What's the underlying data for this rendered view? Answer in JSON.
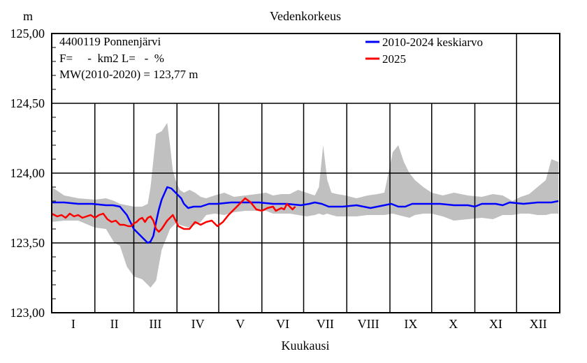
{
  "chart_data": {
    "type": "line",
    "title": "Vedenkorkeus",
    "ylabel": "m",
    "xlabel": "Kuukausi",
    "ylim": [
      123.0,
      125.0
    ],
    "yticks": [
      "123,00",
      "123,50",
      "124,00",
      "124,50",
      "125,00"
    ],
    "ytick_values": [
      123.0,
      123.5,
      124.0,
      124.5,
      125.0
    ],
    "months": [
      "I",
      "II",
      "III",
      "IV",
      "V",
      "VI",
      "VII",
      "VIII",
      "IX",
      "X",
      "XI",
      "XII"
    ],
    "info": [
      "4400119 Ponnenjärvi",
      "F=     -  km2 L=   -  %",
      "MW(2010-2020) = 123,77 m"
    ],
    "legend": [
      {
        "name": "2010-2024 keskiarvo",
        "color": "#0000ff"
      },
      {
        "name": "2025",
        "color": "#ff0000"
      }
    ],
    "band": {
      "name": "min-max range",
      "color": "#c0c0c0",
      "x": [
        1,
        10,
        20,
        32,
        40,
        46,
        50,
        55,
        60,
        66,
        70,
        72,
        76,
        80,
        84,
        86,
        88,
        90,
        93,
        96,
        100,
        104,
        108,
        112,
        118,
        125,
        132,
        140,
        148,
        155,
        160,
        166,
        172,
        178,
        184,
        190,
        193,
        196,
        199,
        202,
        206,
        212,
        220,
        228,
        235,
        240,
        246,
        250,
        254,
        258,
        262,
        268,
        274,
        282,
        290,
        300,
        310,
        318,
        325,
        332,
        338,
        344,
        350,
        356,
        360,
        365
      ],
      "upper": [
        123.9,
        123.84,
        123.82,
        123.81,
        123.82,
        123.8,
        123.78,
        123.77,
        123.76,
        123.76,
        123.78,
        123.9,
        124.28,
        124.3,
        124.36,
        124.2,
        124.02,
        123.95,
        123.88,
        123.86,
        123.88,
        123.86,
        123.83,
        123.82,
        123.84,
        123.86,
        123.83,
        123.84,
        123.85,
        123.86,
        123.84,
        123.85,
        123.85,
        123.88,
        123.86,
        123.84,
        123.9,
        124.2,
        123.95,
        123.86,
        123.85,
        123.84,
        123.82,
        123.84,
        123.85,
        123.86,
        124.15,
        124.2,
        124.08,
        124.0,
        123.95,
        123.9,
        123.86,
        123.84,
        123.86,
        123.84,
        123.83,
        123.85,
        123.84,
        123.8,
        123.83,
        123.85,
        123.9,
        123.95,
        124.1,
        124.08
      ],
      "lower": [
        123.65,
        123.66,
        123.66,
        123.61,
        123.6,
        123.5,
        123.48,
        123.33,
        123.26,
        123.24,
        123.2,
        123.18,
        123.23,
        123.45,
        123.55,
        123.6,
        123.62,
        123.64,
        123.63,
        123.62,
        123.61,
        123.63,
        123.65,
        123.7,
        123.71,
        123.7,
        123.72,
        123.73,
        123.73,
        123.73,
        123.71,
        123.71,
        123.71,
        123.7,
        123.69,
        123.7,
        123.71,
        123.7,
        123.71,
        123.7,
        123.69,
        123.69,
        123.69,
        123.7,
        123.7,
        123.7,
        123.71,
        123.7,
        123.69,
        123.68,
        123.7,
        123.71,
        123.71,
        123.69,
        123.66,
        123.67,
        123.68,
        123.67,
        123.7,
        123.7,
        123.71,
        123.71,
        123.7,
        123.7,
        123.71,
        123.71
      ]
    },
    "series": [
      {
        "name": "2010-2024 keskiarvo",
        "color": "#0000ff",
        "x": [
          1,
          10,
          20,
          30,
          40,
          45,
          50,
          55,
          60,
          65,
          68,
          70,
          72,
          74,
          76,
          78,
          80,
          84,
          87,
          90,
          94,
          96,
          99,
          103,
          108,
          114,
          120,
          130,
          140,
          150,
          160,
          170,
          180,
          186,
          190,
          195,
          200,
          210,
          220,
          230,
          235,
          240,
          245,
          250,
          255,
          260,
          270,
          280,
          290,
          300,
          305,
          310,
          320,
          325,
          330,
          340,
          350,
          360,
          365
        ],
        "values": [
          123.79,
          123.79,
          123.78,
          123.78,
          123.77,
          123.77,
          123.76,
          123.7,
          123.6,
          123.55,
          123.52,
          123.5,
          123.51,
          123.55,
          123.65,
          123.74,
          123.81,
          123.9,
          123.89,
          123.86,
          123.82,
          123.78,
          123.75,
          123.76,
          123.76,
          123.78,
          123.78,
          123.79,
          123.79,
          123.79,
          123.78,
          123.78,
          123.77,
          123.78,
          123.79,
          123.78,
          123.76,
          123.76,
          123.77,
          123.75,
          123.76,
          123.77,
          123.78,
          123.76,
          123.76,
          123.78,
          123.78,
          123.78,
          123.77,
          123.77,
          123.76,
          123.78,
          123.78,
          123.77,
          123.79,
          123.78,
          123.79,
          123.79,
          123.8
        ]
      },
      {
        "name": "2025",
        "color": "#ff0000",
        "x": [
          1,
          5,
          8,
          11,
          14,
          17,
          20,
          23,
          26,
          29,
          32,
          35,
          38,
          41,
          44,
          47,
          50,
          53,
          56,
          58,
          60,
          62,
          64,
          66,
          68,
          70,
          72,
          74,
          76,
          78,
          80,
          84,
          88,
          92,
          96,
          100,
          104,
          108,
          112,
          116,
          120,
          124,
          128,
          132,
          136,
          140,
          144,
          148,
          152,
          156,
          160,
          162,
          164,
          166,
          168,
          170,
          172,
          174,
          176
        ],
        "values": [
          123.71,
          123.69,
          123.7,
          123.68,
          123.71,
          123.69,
          123.7,
          123.68,
          123.69,
          123.7,
          123.68,
          123.7,
          123.71,
          123.67,
          123.65,
          123.66,
          123.63,
          123.63,
          123.62,
          123.62,
          123.64,
          123.65,
          123.67,
          123.68,
          123.65,
          123.68,
          123.69,
          123.66,
          123.6,
          123.58,
          123.6,
          123.66,
          123.7,
          123.62,
          123.6,
          123.6,
          123.65,
          123.63,
          123.65,
          123.66,
          123.62,
          123.65,
          123.7,
          123.74,
          123.78,
          123.82,
          123.79,
          123.74,
          123.73,
          123.75,
          123.76,
          123.73,
          123.74,
          123.75,
          123.74,
          123.78,
          123.76,
          123.74,
          123.76
        ]
      }
    ]
  }
}
